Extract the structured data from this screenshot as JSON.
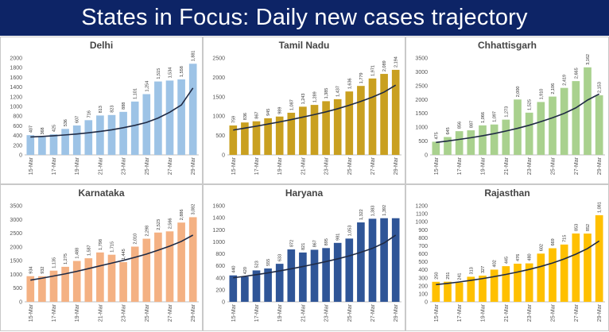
{
  "header": {
    "title": "States in Focus: Daily new cases trajectory"
  },
  "chart_data": [
    {
      "type": "bar",
      "title": "Delhi",
      "color": "#9dc3e6",
      "categories": [
        "15-Mar",
        "16-Mar",
        "17-Mar",
        "18-Mar",
        "19-Mar",
        "20-Mar",
        "21-Mar",
        "22-Mar",
        "23-Mar",
        "24-Mar",
        "25-Mar",
        "26-Mar",
        "27-Mar",
        "28-Mar",
        "29-Mar"
      ],
      "x_tick_labels": [
        "15-Mar",
        "17-Mar",
        "19-Mar",
        "21-Mar",
        "23-Mar",
        "25-Mar",
        "27-Mar",
        "29-Mar"
      ],
      "values": [
        407,
        368,
        425,
        536,
        607,
        716,
        813,
        823,
        888,
        1101,
        1254,
        1515,
        1534,
        1558,
        1881
      ],
      "value_labels": [
        "407",
        "368",
        "425",
        "536",
        "607",
        "716",
        "813",
        "823",
        "888",
        "1,101",
        "1,254",
        "1,515",
        "1,534",
        "1,558",
        "1,881"
      ],
      "ylim": [
        0,
        2000
      ],
      "yticks": [
        0,
        200,
        400,
        600,
        800,
        1000,
        1200,
        1400,
        1600,
        1800,
        2000
      ],
      "ytick_labels": [
        "0",
        "200",
        "400",
        "600",
        "800",
        "1000",
        "1200",
        "1400",
        "1600",
        "1800",
        "2000"
      ],
      "trend": [
        370,
        380,
        395,
        412,
        432,
        456,
        484,
        518,
        560,
        610,
        670,
        760,
        880,
        1030,
        1380
      ]
    },
    {
      "type": "bar",
      "title": "Tamil Nadu",
      "color": "#c9a020",
      "categories": [
        "15-Mar",
        "16-Mar",
        "17-Mar",
        "18-Mar",
        "19-Mar",
        "20-Mar",
        "21-Mar",
        "22-Mar",
        "23-Mar",
        "24-Mar",
        "25-Mar",
        "26-Mar",
        "27-Mar",
        "28-Mar",
        "29-Mar"
      ],
      "x_tick_labels": [
        "15-Mar",
        "17-Mar",
        "19-Mar",
        "21-Mar",
        "23-Mar",
        "25-Mar",
        "27-Mar",
        "29-Mar"
      ],
      "values": [
        759,
        836,
        867,
        945,
        989,
        1087,
        1243,
        1289,
        1385,
        1437,
        1636,
        1779,
        1971,
        2089,
        2194
      ],
      "value_labels": [
        "759",
        "836",
        "867",
        "945",
        "989",
        "1,087",
        "1,243",
        "1,289",
        "1,385",
        "1,437",
        "1,636",
        "1,779",
        "1,971",
        "2,089",
        "2,194"
      ],
      "ylim": [
        0,
        2500
      ],
      "yticks": [
        0,
        500,
        1000,
        1500,
        2000,
        2500
      ],
      "ytick_labels": [
        "0",
        "500",
        "1000",
        "1500",
        "2000",
        "2500"
      ],
      "trend": [
        640,
        690,
        740,
        795,
        850,
        910,
        975,
        1040,
        1110,
        1190,
        1280,
        1380,
        1490,
        1620,
        1800
      ]
    },
    {
      "type": "bar",
      "title": "Chhattisgarh",
      "color": "#a9d18e",
      "categories": [
        "15-Mar",
        "16-Mar",
        "17-Mar",
        "18-Mar",
        "19-Mar",
        "20-Mar",
        "21-Mar",
        "22-Mar",
        "23-Mar",
        "24-Mar",
        "25-Mar",
        "26-Mar",
        "27-Mar",
        "28-Mar",
        "29-Mar"
      ],
      "x_tick_labels": [
        "15-Mar",
        "17-Mar",
        "19-Mar",
        "21-Mar",
        "23-Mar",
        "25-Mar",
        "27-Mar",
        "29-Mar"
      ],
      "values": [
        475,
        645,
        856,
        887,
        1066,
        1097,
        1273,
        2000,
        1525,
        1910,
        2106,
        2419,
        2665,
        3162,
        2153
      ],
      "value_labels": [
        "475",
        "645",
        "856",
        "887",
        "1,066",
        "1,097",
        "1,273",
        "2,000",
        "1,525",
        "1,910",
        "2,106",
        "2,419",
        "2,665",
        "3,162",
        "2,153"
      ],
      "ylim": [
        0,
        3500
      ],
      "yticks": [
        0,
        500,
        1000,
        1500,
        2000,
        2500,
        3000,
        3500
      ],
      "ytick_labels": [
        "0",
        "500",
        "1000",
        "1500",
        "2000",
        "2500",
        "3000",
        "3500"
      ],
      "trend": [
        450,
        500,
        560,
        620,
        690,
        770,
        860,
        960,
        1070,
        1200,
        1340,
        1500,
        1700,
        1980,
        2200
      ]
    },
    {
      "type": "bar",
      "title": "Karnataka",
      "color": "#f4b183",
      "categories": [
        "15-Mar",
        "16-Mar",
        "17-Mar",
        "18-Mar",
        "19-Mar",
        "20-Mar",
        "21-Mar",
        "22-Mar",
        "23-Mar",
        "24-Mar",
        "25-Mar",
        "26-Mar",
        "27-Mar",
        "28-Mar",
        "29-Mar"
      ],
      "x_tick_labels": [
        "15-Mar",
        "17-Mar",
        "19-Mar",
        "21-Mar",
        "23-Mar",
        "25-Mar",
        "27-Mar",
        "29-Mar"
      ],
      "values": [
        934,
        932,
        1135,
        1275,
        1488,
        1587,
        1798,
        1715,
        1445,
        2010,
        2298,
        2523,
        2566,
        2886,
        3082
      ],
      "value_labels": [
        "934",
        "932",
        "1,135",
        "1,275",
        "1,488",
        "1,587",
        "1,798",
        "1,715",
        "1,445",
        "2,010",
        "2,298",
        "2,523",
        "2,566",
        "2,886",
        "3,082"
      ],
      "ylim": [
        0,
        3500
      ],
      "yticks": [
        0,
        500,
        1000,
        1500,
        2000,
        2500,
        3000,
        3500
      ],
      "ytick_labels": [
        "0",
        "500",
        "1000",
        "1500",
        "2000",
        "2500",
        "3000",
        "3500"
      ],
      "trend": [
        790,
        860,
        940,
        1020,
        1110,
        1210,
        1310,
        1410,
        1510,
        1620,
        1740,
        1880,
        2030,
        2200,
        2430
      ]
    },
    {
      "type": "bar",
      "title": "Haryana",
      "color": "#2f5597",
      "categories": [
        "15-Mar",
        "16-Mar",
        "17-Mar",
        "18-Mar",
        "19-Mar",
        "20-Mar",
        "21-Mar",
        "22-Mar",
        "23-Mar",
        "24-Mar",
        "25-Mar",
        "26-Mar",
        "27-Mar",
        "28-Mar",
        "29-Mar"
      ],
      "x_tick_labels": [
        "15-Mar",
        "17-Mar",
        "19-Mar",
        "21-Mar",
        "23-Mar",
        "25-Mar",
        "27-Mar",
        "29-Mar"
      ],
      "values": [
        440,
        420,
        523,
        555,
        633,
        872,
        821,
        867,
        895,
        981,
        1053,
        1322,
        1383,
        1392,
        1392
      ],
      "value_labels": [
        "440",
        "420",
        "523",
        "555",
        "633",
        "872",
        "821",
        "867",
        "895",
        "981",
        "1,053",
        "1,322",
        "1,383",
        "1,392",
        ""
      ],
      "ylim": [
        0,
        1600
      ],
      "yticks": [
        0,
        200,
        400,
        600,
        800,
        1000,
        1200,
        1400,
        1600
      ],
      "ytick_labels": [
        "0",
        "200",
        "400",
        "600",
        "800",
        "1000",
        "1200",
        "1400",
        "1600"
      ],
      "trend": [
        400,
        425,
        452,
        482,
        515,
        550,
        588,
        628,
        670,
        715,
        765,
        825,
        890,
        980,
        1110
      ]
    },
    {
      "type": "bar",
      "title": "Rajasthan",
      "color": "#ffc000",
      "categories": [
        "15-Mar",
        "16-Mar",
        "17-Mar",
        "18-Mar",
        "19-Mar",
        "20-Mar",
        "21-Mar",
        "22-Mar",
        "23-Mar",
        "24-Mar",
        "25-Mar",
        "26-Mar",
        "27-Mar",
        "28-Mar",
        "29-Mar"
      ],
      "x_tick_labels": [
        "15-Mar",
        "17-Mar",
        "19-Mar",
        "21-Mar",
        "23-Mar",
        "25-Mar",
        "27-Mar",
        "29-Mar"
      ],
      "values": [
        250,
        251,
        241,
        313,
        327,
        402,
        445,
        476,
        480,
        602,
        669,
        715,
        853,
        852,
        1081
      ],
      "value_labels": [
        "250",
        "251",
        "241",
        "313",
        "327",
        "402",
        "445",
        "476",
        "480",
        "602",
        "669",
        "715",
        "853",
        "852",
        "1,081"
      ],
      "ylim": [
        0,
        1200
      ],
      "yticks": [
        0,
        100,
        200,
        300,
        400,
        500,
        600,
        700,
        800,
        900,
        1000,
        1100,
        1200
      ],
      "ytick_labels": [
        "0",
        "100",
        "200",
        "300",
        "400",
        "500",
        "600",
        "700",
        "800",
        "900",
        "1000",
        "1100",
        "1200"
      ],
      "trend": [
        215,
        230,
        248,
        268,
        290,
        315,
        342,
        372,
        405,
        442,
        485,
        535,
        595,
        665,
        760
      ]
    }
  ]
}
